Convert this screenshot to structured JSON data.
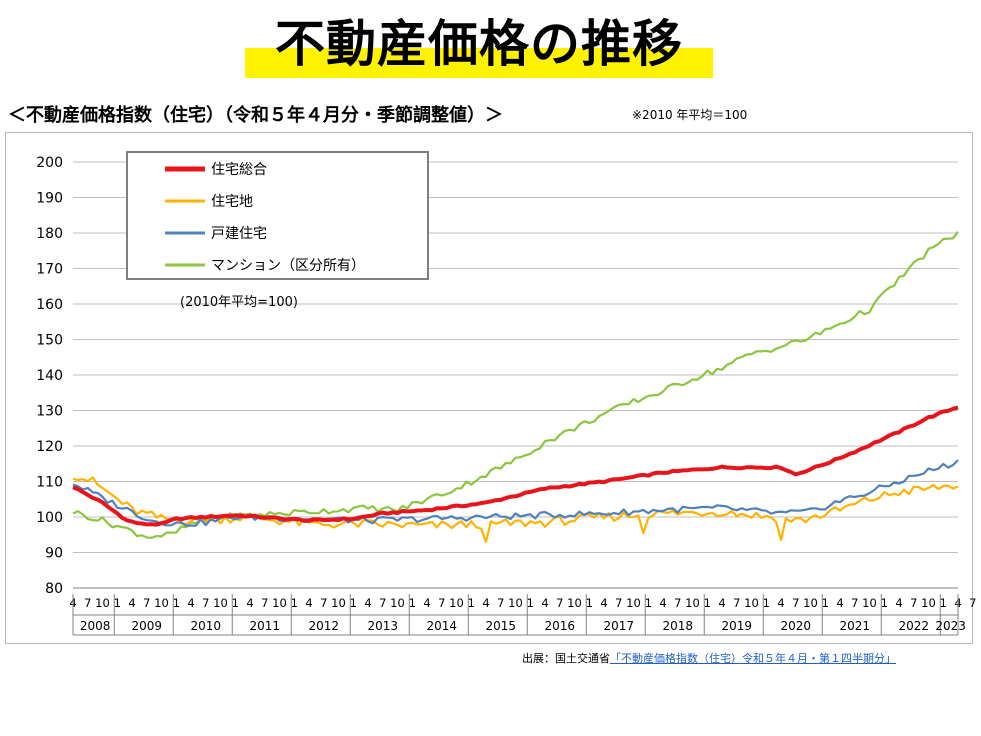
{
  "page": {
    "title": "不動産価格の推移",
    "subtitle": "＜不動産価格指数（住宅）（令和５年４月分・季節調整値）＞",
    "base_note": "※2010 年平均＝100",
    "source_prefix": "出展：国土交通省",
    "source_link": "「不動産価格指数（住宅）令和５年４月・第１四半期分」",
    "highlight_color": "#fff200"
  },
  "chart_data": {
    "type": "line",
    "inner_note": "(2010年平均=100)",
    "ylim": [
      80,
      200
    ],
    "yticks": [
      "200",
      "190",
      "180",
      "170",
      "160",
      "150",
      "140",
      "130",
      "120",
      "110",
      "100",
      "90",
      "80"
    ],
    "grid": "horizontal",
    "legend_position": "top-left",
    "x_month_labels": [
      "4",
      "7",
      "10",
      "1",
      "4",
      "7",
      "10",
      "1",
      "4",
      "7",
      "10",
      "1",
      "4",
      "7",
      "10",
      "1",
      "4",
      "7",
      "10",
      "1",
      "4",
      "7",
      "10",
      "1",
      "4",
      "7",
      "10",
      "1",
      "4",
      "7",
      "10",
      "1",
      "4",
      "7",
      "10",
      "1",
      "4",
      "7",
      "10",
      "1",
      "4",
      "7",
      "10",
      "1",
      "4",
      "7",
      "10",
      "1",
      "4",
      "7",
      "10",
      "1",
      "4",
      "7",
      "10",
      "1",
      "4",
      "7",
      "10",
      "1",
      "4",
      "7",
      "10",
      "1",
      "4"
    ],
    "x_year_labels": [
      "2008",
      "2009",
      "2010",
      "2011",
      "2012",
      "2013",
      "2014",
      "2015",
      "2016",
      "2017",
      "2018",
      "2019",
      "2020",
      "2021",
      "2022",
      "2023"
    ],
    "x_start": "2008-04",
    "x_end": "2023-04",
    "series": [
      {
        "name": "住宅総合",
        "color": "#e8141c",
        "anchors": [
          [
            0,
            108.5
          ],
          [
            6,
            104
          ],
          [
            11,
            99
          ],
          [
            14,
            98
          ],
          [
            18,
            98
          ],
          [
            21,
            99.5
          ],
          [
            33,
            100.5
          ],
          [
            48,
            99
          ],
          [
            57,
            99.5
          ],
          [
            63,
            101
          ],
          [
            72,
            102
          ],
          [
            84,
            104
          ],
          [
            96,
            108
          ],
          [
            108,
            110
          ],
          [
            120,
            112.5
          ],
          [
            132,
            114
          ],
          [
            144,
            114
          ],
          [
            147,
            112
          ],
          [
            154,
            115.5
          ],
          [
            160,
            119
          ],
          [
            168,
            124
          ],
          [
            174,
            128
          ],
          [
            180,
            131
          ],
          [
            186,
            133
          ],
          [
            192,
            134
          ],
          [
            197,
            135
          ]
        ],
        "noise": 0.25,
        "width": 4
      },
      {
        "name": "住宅地",
        "color": "#ffb300",
        "anchors": [
          [
            0,
            112
          ],
          [
            4,
            110
          ],
          [
            8,
            106
          ],
          [
            12,
            102
          ],
          [
            18,
            99.5
          ],
          [
            24,
            99
          ],
          [
            30,
            99.5
          ],
          [
            36,
            100
          ],
          [
            48,
            98
          ],
          [
            60,
            98
          ],
          [
            72,
            97.5
          ],
          [
            84,
            98
          ],
          [
            96,
            98.5
          ],
          [
            108,
            100
          ],
          [
            120,
            101
          ],
          [
            132,
            101.5
          ],
          [
            142,
            100
          ],
          [
            148,
            99
          ],
          [
            156,
            102
          ],
          [
            162,
            105
          ],
          [
            168,
            107
          ],
          [
            174,
            108
          ],
          [
            180,
            109
          ],
          [
            186,
            111
          ],
          [
            192,
            111
          ],
          [
            197,
            110
          ]
        ],
        "noise": 1.3,
        "width": 2.2,
        "dips": [
          [
            84,
            93
          ],
          [
            144,
            93.5
          ],
          [
            116,
            95.5
          ]
        ]
      },
      {
        "name": "戸建住宅",
        "color": "#4f81bd",
        "anchors": [
          [
            0,
            109.5
          ],
          [
            8,
            104
          ],
          [
            16,
            99
          ],
          [
            22,
            98
          ],
          [
            27,
            98.5
          ],
          [
            33,
            100
          ],
          [
            48,
            99.5
          ],
          [
            60,
            99
          ],
          [
            72,
            99.5
          ],
          [
            84,
            100
          ],
          [
            96,
            100.5
          ],
          [
            108,
            101
          ],
          [
            120,
            102
          ],
          [
            132,
            102.5
          ],
          [
            144,
            101
          ],
          [
            150,
            101.5
          ],
          [
            156,
            104.5
          ],
          [
            162,
            107
          ],
          [
            168,
            110
          ],
          [
            174,
            113
          ],
          [
            180,
            115.5
          ],
          [
            186,
            116.5
          ],
          [
            191,
            117.5
          ],
          [
            194,
            118
          ],
          [
            197,
            117.5
          ]
        ],
        "noise": 0.9,
        "width": 2.2
      },
      {
        "name": "マンション（区分所有）",
        "color": "#8cc63f",
        "anchors": [
          [
            0,
            101.5
          ],
          [
            6,
            99
          ],
          [
            12,
            96
          ],
          [
            15,
            94.5
          ],
          [
            20,
            95
          ],
          [
            24,
            98
          ],
          [
            30,
            100
          ],
          [
            36,
            100.5
          ],
          [
            48,
            101.5
          ],
          [
            60,
            102.5
          ],
          [
            66,
            102
          ],
          [
            72,
            105
          ],
          [
            78,
            108
          ],
          [
            84,
            112
          ],
          [
            90,
            116
          ],
          [
            96,
            121
          ],
          [
            102,
            125
          ],
          [
            108,
            129
          ],
          [
            114,
            132.5
          ],
          [
            120,
            135.5
          ],
          [
            126,
            139
          ],
          [
            132,
            142
          ],
          [
            138,
            146
          ],
          [
            144,
            148
          ],
          [
            150,
            150.5
          ],
          [
            156,
            154.5
          ],
          [
            162,
            158.5
          ],
          [
            168,
            167
          ],
          [
            174,
            175
          ],
          [
            180,
            180
          ],
          [
            186,
            185
          ],
          [
            192,
            189
          ],
          [
            197,
            192
          ]
        ],
        "noise": 0.9,
        "width": 2.2
      }
    ]
  }
}
